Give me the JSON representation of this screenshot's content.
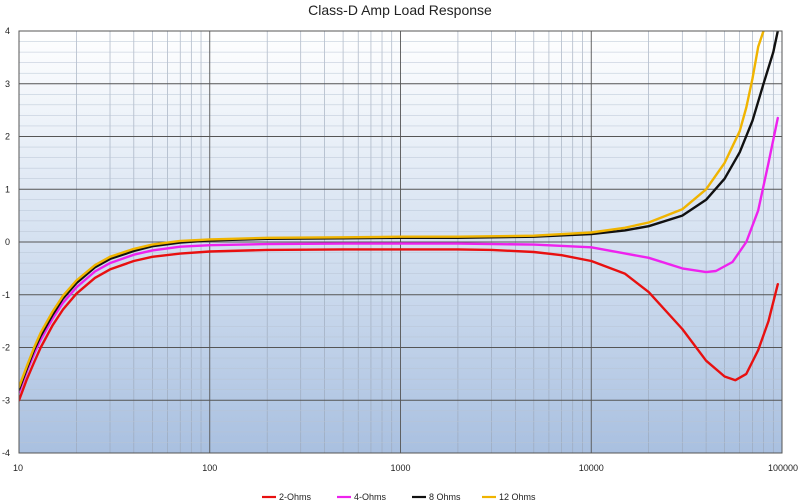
{
  "chart_data": {
    "type": "line",
    "title": "Class-D Amp Load Response",
    "xlabel": "",
    "ylabel": "",
    "x_scale": "log",
    "xlim": [
      10,
      100000
    ],
    "ylim": [
      -4,
      4
    ],
    "x_ticks": [
      10,
      100,
      1000,
      10000,
      100000
    ],
    "x_tick_labels": [
      "10",
      "100",
      "1000",
      "10000",
      "100000"
    ],
    "y_ticks": [
      -4,
      -3,
      -2,
      -1,
      0,
      1,
      2,
      3,
      4
    ],
    "y_tick_labels": [
      "-4",
      "-3",
      "-2",
      "-1",
      "0",
      "1",
      "2",
      "3",
      "4"
    ],
    "grid": true,
    "legend_position": "bottom",
    "series": [
      {
        "name": "2-Ohms",
        "color": "#e81010",
        "points": [
          [
            10,
            -3.0
          ],
          [
            11,
            -2.6
          ],
          [
            12,
            -2.28
          ],
          [
            13,
            -2.0
          ],
          [
            15,
            -1.58
          ],
          [
            17,
            -1.28
          ],
          [
            20,
            -0.98
          ],
          [
            25,
            -0.68
          ],
          [
            30,
            -0.52
          ],
          [
            40,
            -0.36
          ],
          [
            50,
            -0.28
          ],
          [
            70,
            -0.22
          ],
          [
            100,
            -0.18
          ],
          [
            200,
            -0.15
          ],
          [
            500,
            -0.14
          ],
          [
            1000,
            -0.14
          ],
          [
            2000,
            -0.14
          ],
          [
            3000,
            -0.15
          ],
          [
            5000,
            -0.19
          ],
          [
            7000,
            -0.25
          ],
          [
            10000,
            -0.36
          ],
          [
            15000,
            -0.6
          ],
          [
            20000,
            -0.95
          ],
          [
            30000,
            -1.65
          ],
          [
            40000,
            -2.25
          ],
          [
            50000,
            -2.55
          ],
          [
            57000,
            -2.62
          ],
          [
            65000,
            -2.5
          ],
          [
            75000,
            -2.05
          ],
          [
            85000,
            -1.5
          ],
          [
            95000,
            -0.8
          ]
        ]
      },
      {
        "name": "4-Ohms",
        "color": "#ee22ee",
        "points": [
          [
            10,
            -2.85
          ],
          [
            11,
            -2.45
          ],
          [
            12,
            -2.12
          ],
          [
            13,
            -1.85
          ],
          [
            15,
            -1.45
          ],
          [
            17,
            -1.15
          ],
          [
            20,
            -0.86
          ],
          [
            25,
            -0.56
          ],
          [
            30,
            -0.4
          ],
          [
            40,
            -0.24
          ],
          [
            50,
            -0.16
          ],
          [
            70,
            -0.09
          ],
          [
            100,
            -0.06
          ],
          [
            200,
            -0.04
          ],
          [
            500,
            -0.03
          ],
          [
            1000,
            -0.03
          ],
          [
            2000,
            -0.03
          ],
          [
            5000,
            -0.05
          ],
          [
            10000,
            -0.1
          ],
          [
            20000,
            -0.3
          ],
          [
            30000,
            -0.5
          ],
          [
            40000,
            -0.57
          ],
          [
            45000,
            -0.55
          ],
          [
            55000,
            -0.38
          ],
          [
            65000,
            0.0
          ],
          [
            75000,
            0.6
          ],
          [
            85000,
            1.5
          ],
          [
            95000,
            2.35
          ]
        ]
      },
      {
        "name": "8 Ohms",
        "color": "#111111",
        "points": [
          [
            10,
            -2.8
          ],
          [
            11,
            -2.4
          ],
          [
            12,
            -2.05
          ],
          [
            13,
            -1.78
          ],
          [
            15,
            -1.38
          ],
          [
            17,
            -1.07
          ],
          [
            20,
            -0.78
          ],
          [
            25,
            -0.48
          ],
          [
            30,
            -0.32
          ],
          [
            40,
            -0.17
          ],
          [
            50,
            -0.08
          ],
          [
            70,
            -0.01
          ],
          [
            100,
            0.03
          ],
          [
            200,
            0.06
          ],
          [
            500,
            0.07
          ],
          [
            1000,
            0.08
          ],
          [
            2000,
            0.08
          ],
          [
            5000,
            0.1
          ],
          [
            10000,
            0.15
          ],
          [
            15000,
            0.22
          ],
          [
            20000,
            0.3
          ],
          [
            30000,
            0.5
          ],
          [
            40000,
            0.8
          ],
          [
            50000,
            1.2
          ],
          [
            60000,
            1.7
          ],
          [
            70000,
            2.3
          ],
          [
            80000,
            3.0
          ],
          [
            90000,
            3.6
          ],
          [
            95000,
            4.0
          ]
        ]
      },
      {
        "name": "12 Ohms",
        "color": "#f0b400",
        "points": [
          [
            10,
            -2.75
          ],
          [
            11,
            -2.35
          ],
          [
            12,
            -2.0
          ],
          [
            13,
            -1.72
          ],
          [
            15,
            -1.32
          ],
          [
            17,
            -1.02
          ],
          [
            20,
            -0.73
          ],
          [
            25,
            -0.44
          ],
          [
            30,
            -0.28
          ],
          [
            40,
            -0.13
          ],
          [
            50,
            -0.05
          ],
          [
            70,
            0.02
          ],
          [
            100,
            0.05
          ],
          [
            200,
            0.08
          ],
          [
            500,
            0.09
          ],
          [
            1000,
            0.1
          ],
          [
            2000,
            0.1
          ],
          [
            5000,
            0.12
          ],
          [
            10000,
            0.18
          ],
          [
            15000,
            0.27
          ],
          [
            20000,
            0.37
          ],
          [
            30000,
            0.62
          ],
          [
            40000,
            1.0
          ],
          [
            50000,
            1.5
          ],
          [
            60000,
            2.1
          ],
          [
            65000,
            2.55
          ],
          [
            70000,
            3.1
          ],
          [
            75000,
            3.7
          ],
          [
            80000,
            4.0
          ]
        ]
      }
    ]
  }
}
